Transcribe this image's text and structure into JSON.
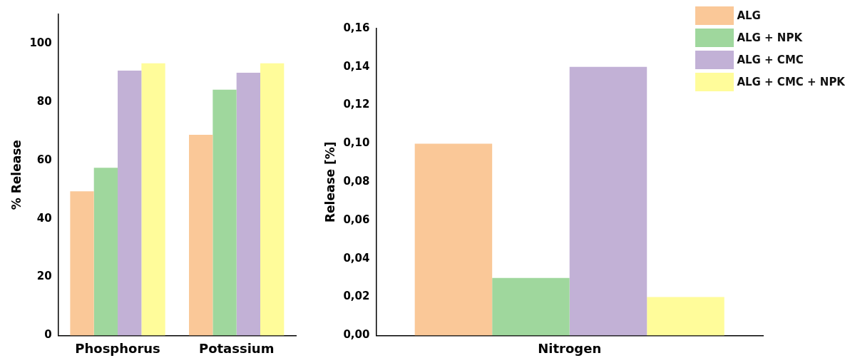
{
  "chart_data": [
    {
      "type": "bar",
      "ylabel": "% Release",
      "categories": [
        "Phosphorus",
        "Potassium"
      ],
      "ylim": [
        0,
        110
      ],
      "yticks": [
        0,
        20,
        40,
        60,
        80,
        100
      ],
      "grid": false,
      "legend": false,
      "series": [
        {
          "color": "#fac898",
          "values": [
            49.4,
            68.7
          ]
        },
        {
          "color": "#9fd79d",
          "values": [
            57.4,
            84.2
          ]
        },
        {
          "color": "#c2b1d6",
          "values": [
            90.7,
            90.0
          ]
        },
        {
          "color": "#fffc9a",
          "values": [
            93.2,
            93.2
          ]
        }
      ]
    },
    {
      "type": "bar",
      "ylabel": "Release [%]",
      "categories": [
        "Nitrogen"
      ],
      "ylim": [
        0,
        0.16
      ],
      "yticks": [
        {
          "value": 0,
          "label": "0,00"
        },
        {
          "value": 0.02,
          "label": "0,02"
        },
        {
          "value": 0.04,
          "label": "0,04"
        },
        {
          "value": 0.06,
          "label": "0,06"
        },
        {
          "value": 0.08,
          "label": "0,08"
        },
        {
          "value": 0.1,
          "label": "0,10"
        },
        {
          "value": 0.12,
          "label": "0,12"
        },
        {
          "value": 0.14,
          "label": "0,14"
        },
        {
          "value": 0.16,
          "label": "0,16"
        }
      ],
      "grid": false,
      "legend": "top right",
      "series": [
        {
          "name": "ALG",
          "color": "#fac898",
          "values": [
            0.1
          ]
        },
        {
          "name": "ALG + NPK",
          "color": "#9fd79d",
          "values": [
            0.03
          ]
        },
        {
          "name": "ALG + CMC",
          "color": "#c2b1d6",
          "values": [
            0.14
          ]
        },
        {
          "name": "ALG + CMC + NPK",
          "color": "#fffc9a",
          "values": [
            0.02
          ]
        }
      ]
    }
  ]
}
